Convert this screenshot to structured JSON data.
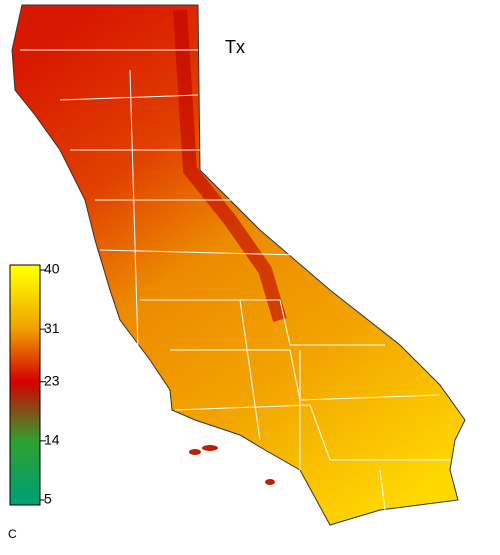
{
  "map": {
    "title": "Tx",
    "colorbar": {
      "unit": "C",
      "lim": [
        5,
        40
      ],
      "ticks": [
        40,
        31,
        23,
        14,
        5
      ],
      "colors": [
        "#ffff00",
        "#f0a000",
        "#d40000",
        "#30a030",
        "#00a070"
      ]
    }
  }
}
